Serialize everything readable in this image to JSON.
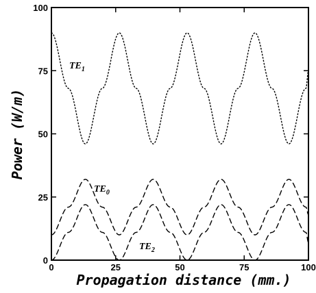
{
  "chart_data": {
    "type": "line",
    "title": "",
    "xlabel": "Propagation distance (mm.)",
    "ylabel": "Power (W/m)",
    "xlim": [
      0,
      100
    ],
    "ylim": [
      0,
      100
    ],
    "x_ticks": [
      "0",
      "25",
      "50",
      "75",
      "100"
    ],
    "y_ticks": [
      "0",
      "25",
      "50",
      "75",
      "100"
    ],
    "grid": false,
    "legend": "none (inline curve labels)",
    "series": [
      {
        "name": "TE1",
        "style": "dotted",
        "label": {
          "main": "TE",
          "sub": "1"
        },
        "x": [
          0,
          6.6,
          13.2,
          19.8,
          26.4,
          33.0,
          39.6,
          46.2,
          52.8,
          59.4,
          66.0,
          72.6,
          79.2,
          85.8,
          92.4,
          99.0,
          100
        ],
        "y": [
          90,
          68,
          46,
          68,
          90,
          68,
          46,
          68,
          90,
          68,
          46,
          68,
          90,
          68,
          46,
          68,
          75
        ]
      },
      {
        "name": "TE0",
        "style": "dashed",
        "label": {
          "main": "TE",
          "sub": "0"
        },
        "x": [
          0,
          6.6,
          13.2,
          19.8,
          26.4,
          33.0,
          39.6,
          46.2,
          52.8,
          59.4,
          66.0,
          72.6,
          79.2,
          85.8,
          92.4,
          99.0,
          100
        ],
        "y": [
          10,
          21,
          32,
          21,
          10,
          21,
          32,
          21,
          10,
          21,
          32,
          21,
          10,
          21,
          32,
          21,
          18
        ]
      },
      {
        "name": "TE2",
        "style": "dashed",
        "label": {
          "main": "TE",
          "sub": "2"
        },
        "x": [
          0,
          6.6,
          13.2,
          19.8,
          26.4,
          33.0,
          39.6,
          46.2,
          52.8,
          59.4,
          66.0,
          72.6,
          79.2,
          85.8,
          92.4,
          99.0,
          100
        ],
        "y": [
          0,
          11,
          22,
          11,
          0,
          11,
          22,
          11,
          0,
          11,
          22,
          11,
          0,
          11,
          22,
          11,
          7
        ]
      }
    ]
  }
}
